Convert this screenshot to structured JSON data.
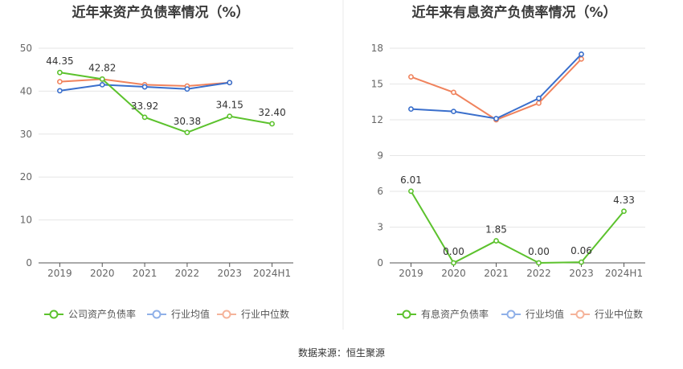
{
  "source": "数据来源：恒生聚源",
  "colors": {
    "company": "#5cc22d",
    "industry_avg": "#3a6fcc",
    "industry_median": "#f0835d",
    "legend_avg": "#8fb0e8",
    "legend_median": "#f5b39a"
  },
  "chart_data": [
    {
      "type": "line",
      "title": "近年来资产负债率情况（%）",
      "categories": [
        "2019",
        "2020",
        "2021",
        "2022",
        "2023",
        "2024H1"
      ],
      "ylim": [
        0,
        50
      ],
      "yticks": [
        0,
        10,
        20,
        30,
        40,
        50
      ],
      "ytick_labels": [
        "0",
        "10",
        "20",
        "30",
        "40",
        "50"
      ],
      "series": [
        {
          "name": "公司资产负债率",
          "key": "company",
          "values": [
            44.35,
            42.82,
            33.92,
            30.38,
            34.15,
            32.4
          ],
          "labels": [
            "44.35",
            "42.82",
            "33.92",
            "30.38",
            "34.15",
            "32.40"
          ]
        },
        {
          "name": "行业均值",
          "key": "industry_avg",
          "values": [
            40.1,
            41.5,
            41.0,
            40.5,
            42.0,
            null
          ]
        },
        {
          "name": "行业中位数",
          "key": "industry_median",
          "values": [
            42.2,
            42.8,
            41.5,
            41.2,
            42.0,
            null
          ]
        }
      ]
    },
    {
      "type": "line",
      "title": "近年来有息资产负债率情况（%）",
      "categories": [
        "2019",
        "2020",
        "2021",
        "2022",
        "2023",
        "2024H1"
      ],
      "ylim": [
        0,
        18
      ],
      "yticks": [
        0,
        3,
        6,
        9,
        12,
        15,
        18
      ],
      "ytick_labels": [
        "0",
        "3",
        "6",
        "9",
        "12",
        "15",
        "18"
      ],
      "series": [
        {
          "name": "有息资产负债率",
          "key": "company",
          "values": [
            6.01,
            0.0,
            1.85,
            0.0,
            0.06,
            4.33
          ],
          "labels": [
            "6.01",
            "0.00",
            "1.85",
            "0.00",
            "0.06",
            "4.33"
          ]
        },
        {
          "name": "行业均值",
          "key": "industry_avg",
          "values": [
            12.9,
            12.7,
            12.1,
            13.8,
            17.5,
            null
          ]
        },
        {
          "name": "行业中位数",
          "key": "industry_median",
          "values": [
            15.6,
            14.3,
            12.0,
            13.4,
            17.1,
            null
          ]
        }
      ]
    }
  ]
}
